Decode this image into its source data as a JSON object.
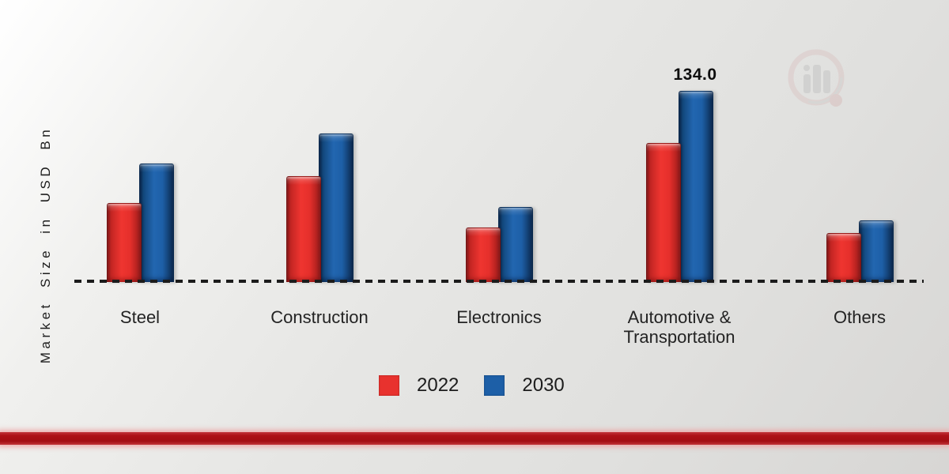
{
  "chart_data": {
    "type": "bar",
    "categories": [
      "Steel",
      "Construction",
      "Electronics",
      "Automotive & Transportation",
      "Others"
    ],
    "series": [
      {
        "name": "2022",
        "color": "#e8322e",
        "values": [
          55,
          74,
          38,
          97,
          34
        ]
      },
      {
        "name": "2030",
        "color": "#1d5fa7",
        "values": [
          83,
          104,
          52,
          134,
          43
        ]
      }
    ],
    "title": "",
    "xlabel": "",
    "ylabel": "Market Size in USD Bn",
    "ylim": [
      0,
      140
    ],
    "grid": false,
    "baseline_style": "dashed",
    "legend_position": "bottom-center",
    "data_labels": [
      {
        "text": "134.0",
        "category_index": 3,
        "series_index": 1
      }
    ]
  },
  "decor": {
    "accent_band_color": "#ad1016",
    "watermark_icon": "magnifier-bar-chart-logo"
  }
}
